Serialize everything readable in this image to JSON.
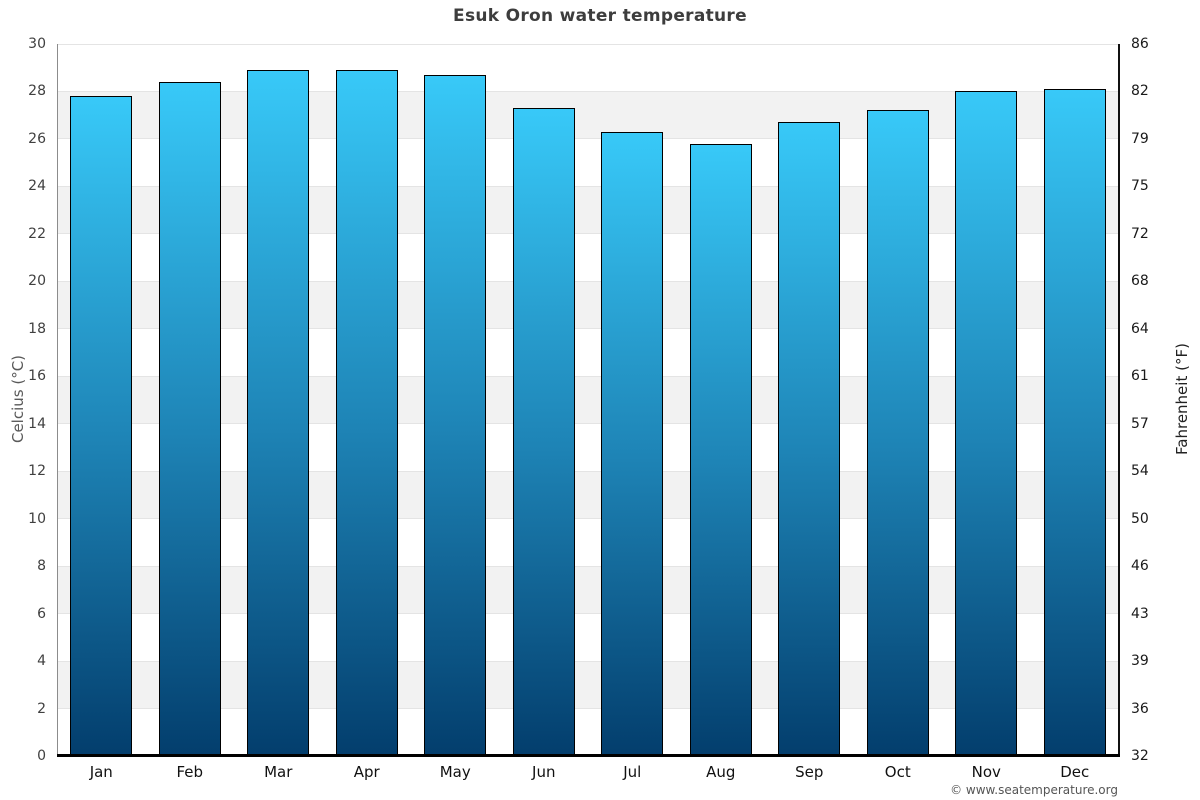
{
  "title": "Esuk Oron water temperature",
  "footer": "© www.seatemperature.org",
  "axes": {
    "left_label": "Celcius (°C)",
    "right_label": "Fahrenheit (°F)"
  },
  "chart_data": {
    "type": "bar",
    "title": "Esuk Oron water temperature",
    "categories": [
      "Jan",
      "Feb",
      "Mar",
      "Apr",
      "May",
      "Jun",
      "Jul",
      "Aug",
      "Sep",
      "Oct",
      "Nov",
      "Dec"
    ],
    "values": [
      27.8,
      28.4,
      28.9,
      28.9,
      28.7,
      27.3,
      26.3,
      25.8,
      26.7,
      27.2,
      28.0,
      28.1
    ],
    "series_name": "Water temperature (°C)",
    "xlabel": "",
    "ylabel_left": "Celcius (°C)",
    "ylabel_right": "Fahrenheit (°F)",
    "ylim": [
      0,
      30
    ],
    "yticks_celsius": [
      0,
      2,
      4,
      6,
      8,
      10,
      12,
      14,
      16,
      18,
      20,
      22,
      24,
      26,
      28,
      30
    ],
    "yticks_fahrenheit": [
      32,
      36,
      39,
      43,
      46,
      50,
      54,
      57,
      61,
      64,
      68,
      72,
      75,
      79,
      82,
      86
    ],
    "grid": "alternating-horizontal-bands",
    "legend": "none",
    "colors": {
      "bar_gradient_top": "#38c9f8",
      "bar_gradient_mid": "#1e84b6",
      "bar_gradient_bottom": "#033e6d",
      "bar_border": "#000000",
      "band_gray": "#f2f2f2",
      "background": "#ffffff",
      "title_text": "#3d3d3d"
    }
  }
}
